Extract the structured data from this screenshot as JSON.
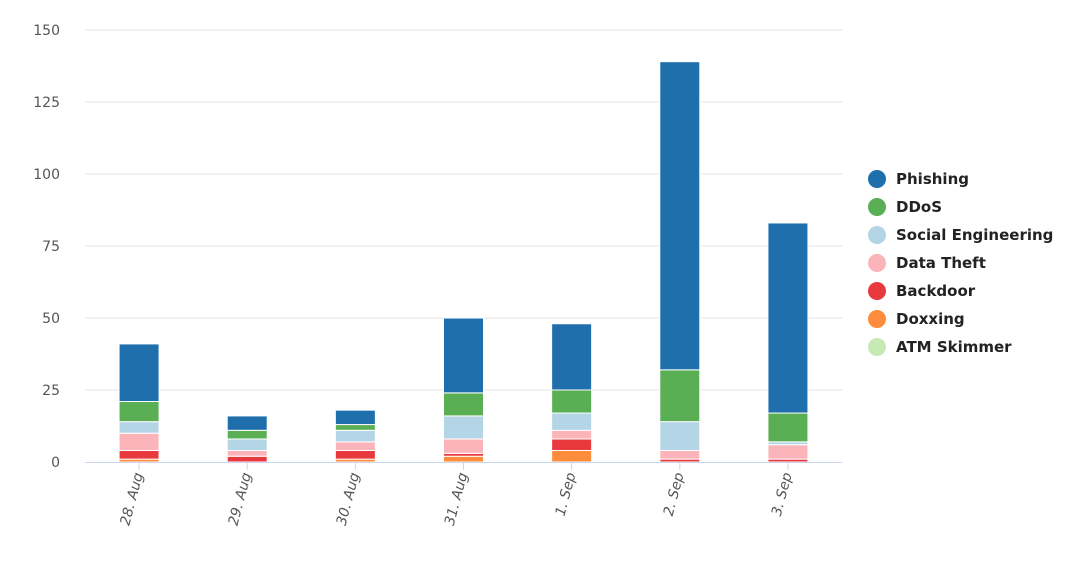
{
  "chart_data": {
    "type": "bar",
    "stacked": true,
    "title": "",
    "xlabel": "",
    "ylabel": "",
    "categories": [
      "28. Aug",
      "29. Aug",
      "30. Aug",
      "31. Aug",
      "1. Sep",
      "2. Sep",
      "3. Sep"
    ],
    "ylim": [
      0,
      150
    ],
    "yticks": [
      0,
      25,
      50,
      75,
      100,
      125,
      150
    ],
    "grid": true,
    "legend_position": "right",
    "series": [
      {
        "name": "ATM Skimmer",
        "color": "#c7e9b4",
        "values": [
          0,
          0,
          0,
          0,
          0,
          0,
          0
        ]
      },
      {
        "name": "Doxxing",
        "color": "#fd8d3c",
        "values": [
          1,
          0,
          1,
          2,
          4,
          0,
          0
        ]
      },
      {
        "name": "Backdoor",
        "color": "#e8393f",
        "values": [
          3,
          2,
          3,
          1,
          4,
          1,
          1
        ]
      },
      {
        "name": "Data Theft",
        "color": "#fbb4b9",
        "values": [
          6,
          2,
          3,
          5,
          3,
          3,
          5
        ]
      },
      {
        "name": "Social Engineering",
        "color": "#b3d5e6",
        "values": [
          4,
          4,
          4,
          8,
          6,
          10,
          1
        ]
      },
      {
        "name": "DDoS",
        "color": "#5aae53",
        "values": [
          7,
          3,
          2,
          8,
          8,
          18,
          10
        ]
      },
      {
        "name": "Phishing",
        "color": "#1f6fac",
        "values": [
          20,
          5,
          5,
          26,
          23,
          107,
          66
        ]
      }
    ],
    "legend_order": [
      "Phishing",
      "DDoS",
      "Social Engineering",
      "Data Theft",
      "Backdoor",
      "Doxxing",
      "ATM Skimmer"
    ]
  }
}
